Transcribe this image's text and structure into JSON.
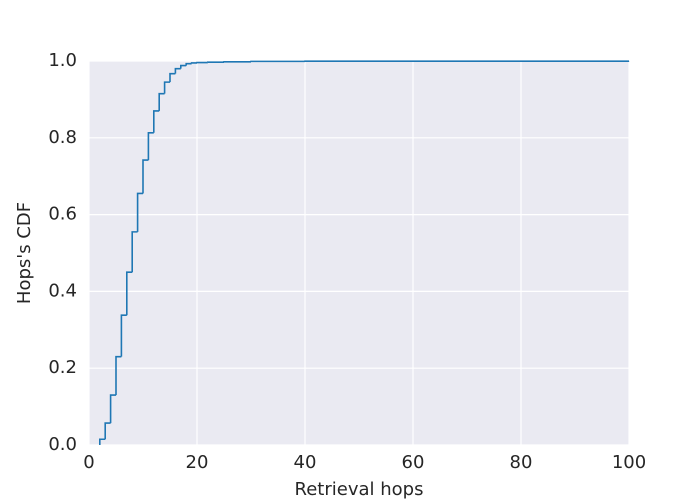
{
  "chart_data": {
    "type": "step",
    "xlabel": "Retrieval hops",
    "ylabel": "Hops's CDF",
    "x": [
      2,
      3,
      4,
      5,
      6,
      7,
      8,
      9,
      10,
      11,
      12,
      13,
      14,
      15,
      16,
      17,
      18,
      19,
      20,
      22,
      25,
      30,
      40,
      100
    ],
    "series": [
      {
        "color": "#1f77b4",
        "values": [
          0.015,
          0.057,
          0.13,
          0.23,
          0.338,
          0.45,
          0.555,
          0.655,
          0.742,
          0.813,
          0.87,
          0.915,
          0.945,
          0.967,
          0.98,
          0.988,
          0.993,
          0.995,
          0.996,
          0.997,
          0.998,
          0.999,
          0.9995,
          1.0
        ]
      }
    ],
    "xlim": [
      0,
      100
    ],
    "xticks": [
      0,
      20,
      40,
      60,
      80,
      100
    ],
    "ylim": [
      0,
      1
    ],
    "yticks": [
      {
        "value": 0,
        "label": "0.0"
      },
      0.2,
      0.4,
      0.6,
      0.8,
      {
        "value": 1,
        "label": "1.0"
      }
    ],
    "grid": true
  }
}
